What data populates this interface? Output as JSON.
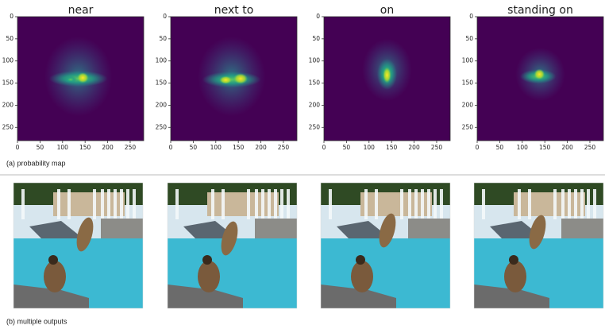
{
  "panels": [
    {
      "title": "near"
    },
    {
      "title": "next to"
    },
    {
      "title": "on"
    },
    {
      "title": "standing on"
    }
  ],
  "axes": {
    "xlim": [
      0,
      280
    ],
    "ylim": [
      0,
      280
    ],
    "xticks": [
      0,
      50,
      100,
      150,
      200,
      250
    ],
    "yticks": [
      0,
      50,
      100,
      150,
      200,
      250
    ]
  },
  "captions": {
    "a": "(a) probability map",
    "b": "(b) multiple outputs"
  }
}
